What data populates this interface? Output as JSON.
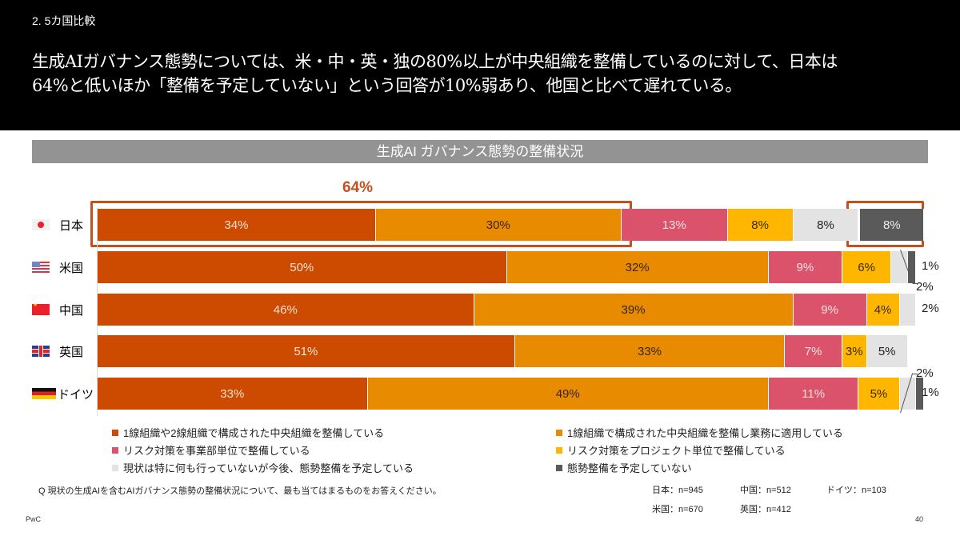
{
  "header": {
    "section": "2. 5カ国比較",
    "headline_line1": "生成AIガバナンス態勢については、米・中・英・独の80%以上が中央組織を整備しているのに対して、日本は",
    "headline_line2": "64%と低いほか「整備を予定していない」という回答が10%弱あり、他国と比べて遅れている。"
  },
  "callout": {
    "japan_central_total": "64%"
  },
  "colors": {
    "cat1": "#cd4b00",
    "cat2": "#e88b00",
    "cat3": "#db536a",
    "cat4": "#ffb600",
    "cat5": "#e3e3e3",
    "cat6": "#5a5a5a",
    "highlight": "#c4501c"
  },
  "chart_data": {
    "type": "bar",
    "orientation": "horizontal-stacked-100",
    "title": "生成AI ガバナンス態勢の整備状況",
    "xlabel": "",
    "ylabel": "",
    "xlim": [
      0,
      100
    ],
    "grid": false,
    "legend_position": "bottom",
    "categories": [
      "日本",
      "米国",
      "中国",
      "英国",
      "ドイツ"
    ],
    "series": [
      {
        "name": "1線組織や2線組織で構成された中央組織を整備している",
        "values": [
          34,
          50,
          46,
          51,
          33
        ]
      },
      {
        "name": "1線組織で構成された中央組織を整備し業務に適用している",
        "values": [
          30,
          32,
          39,
          33,
          49
        ]
      },
      {
        "name": "リスク対策を事業部単位で整備している",
        "values": [
          13,
          9,
          9,
          7,
          11
        ]
      },
      {
        "name": "リスク対策をプロジェクト単位で整備している",
        "values": [
          8,
          6,
          4,
          3,
          5
        ]
      },
      {
        "name": "現状は特に何も行っていないが今後、態勢整備を予定している",
        "values": [
          8,
          2,
          2,
          5,
          2
        ]
      },
      {
        "name": "態勢整備を予定していない",
        "values": [
          8,
          1,
          0,
          0,
          1
        ]
      }
    ],
    "annotations": [
      {
        "text": "64%",
        "target": "日本: 中央組織 (34% + 30%)"
      },
      {
        "text": "8%",
        "target": "日本: 態勢整備を予定していない (highlighted)"
      }
    ]
  },
  "labels": {
    "rows": [
      {
        "country": "日本",
        "flag": "jp-flag",
        "segs": [
          "34%",
          "30%",
          "13%",
          "8%",
          "8%",
          "8%"
        ]
      },
      {
        "country": "米国",
        "flag": "us-flag",
        "segs": [
          "50%",
          "32%",
          "9%",
          "6%",
          "2%",
          "1%"
        ]
      },
      {
        "country": "中国",
        "flag": "cn-flag",
        "segs": [
          "46%",
          "39%",
          "9%",
          "4%",
          "2%",
          ""
        ]
      },
      {
        "country": "英国",
        "flag": "uk-flag",
        "segs": [
          "51%",
          "33%",
          "7%",
          "3%",
          "5%",
          ""
        ]
      },
      {
        "country": "ドイツ",
        "flag": "de-flag",
        "segs": [
          "33%",
          "49%",
          "11%",
          "5%",
          "2%",
          "1%"
        ]
      }
    ]
  },
  "legend": [
    {
      "label": "1線組織や2線組織で構成された中央組織を整備している",
      "color_key": "cat1"
    },
    {
      "label": "1線組織で構成された中央組織を整備し業務に適用している",
      "color_key": "cat2"
    },
    {
      "label": "リスク対策を事業部単位で整備している",
      "color_key": "cat3"
    },
    {
      "label": "リスク対策をプロジェクト単位で整備している",
      "color_key": "cat4"
    },
    {
      "label": "現状は特に何も行っていないが今後、態勢整備を予定している",
      "color_key": "cat5"
    },
    {
      "label": "態勢整備を予定していない",
      "color_key": "cat6"
    }
  ],
  "question": "Q  現状の生成AIを含むAIガバナンス態勢の整備状況について、最も当てはまるものをお答えください。",
  "samples": {
    "japan": "日本：n=945",
    "china": "中国：n=512",
    "germany": "ドイツ：n=103",
    "us": "米国：n=670",
    "uk": "英国：n=412"
  },
  "footer": {
    "brand": "PwC",
    "page": "40"
  }
}
